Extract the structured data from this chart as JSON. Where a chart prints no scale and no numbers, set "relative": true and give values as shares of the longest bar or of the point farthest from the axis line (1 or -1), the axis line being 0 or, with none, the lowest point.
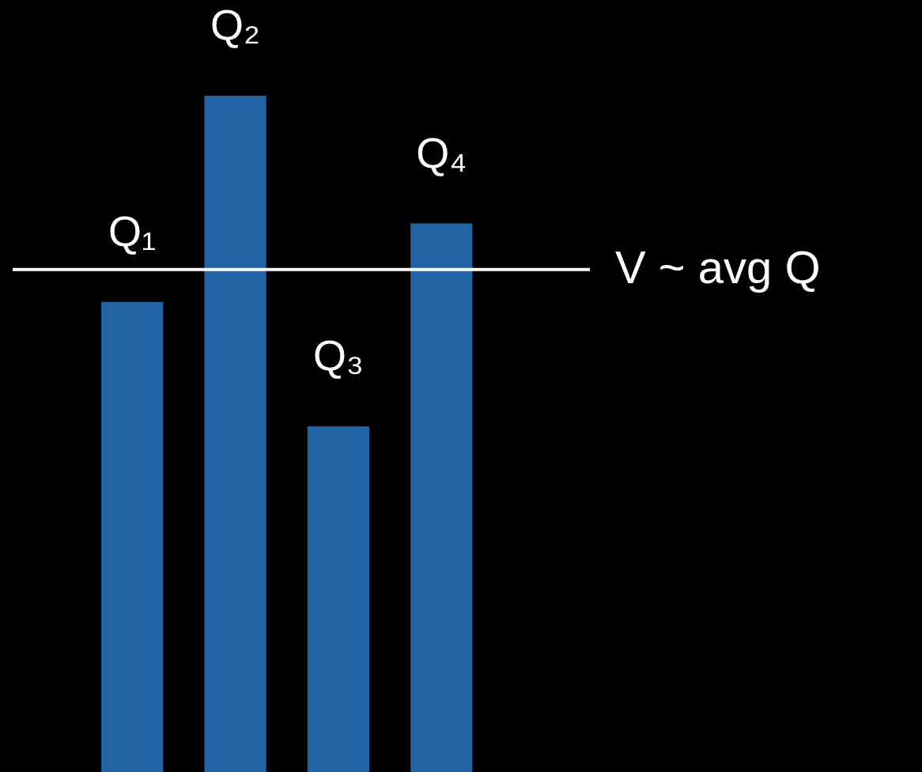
{
  "chart_data": {
    "type": "bar",
    "categories": [
      "Q₁",
      "Q₂",
      "Q₃",
      "Q₄"
    ],
    "values": [
      0.695,
      1,
      0.511,
      0.811
    ],
    "color": "#2064a4",
    "relative": true,
    "ref_lines": [
      {
        "axis": "y",
        "value": 0.743,
        "label": "V ~ avg Q",
        "color": "#ffffff"
      }
    ]
  }
}
